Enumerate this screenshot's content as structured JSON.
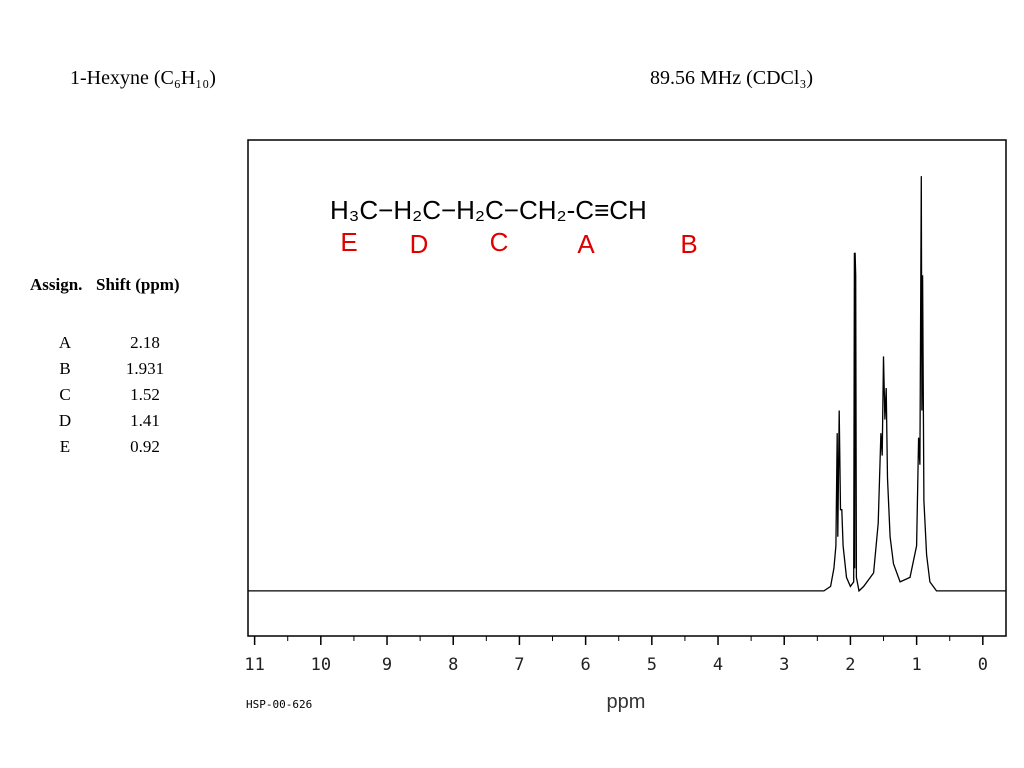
{
  "chart_data": {
    "type": "line",
    "title": "1-Hexyne (C₆H₁₀)",
    "subtitle": "89.56 MHz (CDCl₃)",
    "structure": "H₃C−H₂C−H₂C−CH₂-C≡CH",
    "structure_labels": [
      "E",
      "D",
      "C",
      "A",
      "B"
    ],
    "x_label": "ppm",
    "footnote": "HSP-00-626",
    "xlim": [
      11.1,
      -0.35
    ],
    "xticks": [
      11,
      10,
      9,
      8,
      7,
      6,
      5,
      4,
      3,
      2,
      1,
      0
    ],
    "xminor_ticks": [
      10.5,
      9.5,
      8.5,
      7.5,
      6.5,
      5.5,
      4.5,
      3.5,
      2.5,
      1.5,
      0.5
    ],
    "ylim": [
      -10,
      100
    ],
    "series": [
      {
        "color": "#000000",
        "x": [
          11.1,
          2.4,
          2.3,
          2.25,
          2.22,
          2.2,
          2.19,
          2.17,
          2.15,
          2.13,
          2.11,
          2.06,
          2.0,
          1.95,
          1.94,
          1.935,
          1.93,
          1.92,
          1.91,
          1.87,
          1.8,
          1.65,
          1.58,
          1.54,
          1.52,
          1.5,
          1.48,
          1.46,
          1.44,
          1.4,
          1.35,
          1.25,
          1.1,
          1.0,
          0.97,
          0.95,
          0.93,
          0.92,
          0.91,
          0.89,
          0.85,
          0.8,
          0.7,
          -0.35
        ],
        "values": [
          0,
          0,
          1,
          5,
          10,
          35,
          12,
          40,
          18,
          18,
          10,
          3,
          1,
          2,
          75,
          5,
          75,
          70,
          3,
          0,
          1,
          4,
          15,
          35,
          30,
          52,
          38,
          45,
          25,
          12,
          6,
          2,
          3,
          10,
          34,
          28,
          92,
          40,
          70,
          20,
          8,
          2,
          0,
          0
        ]
      }
    ]
  },
  "assignments": {
    "header": [
      "Assign.",
      "Shift (ppm)"
    ],
    "rows": [
      [
        "A",
        "2.18"
      ],
      [
        "B",
        "1.931"
      ],
      [
        "C",
        "1.52"
      ],
      [
        "D",
        "1.41"
      ],
      [
        "E",
        "0.92"
      ]
    ]
  }
}
